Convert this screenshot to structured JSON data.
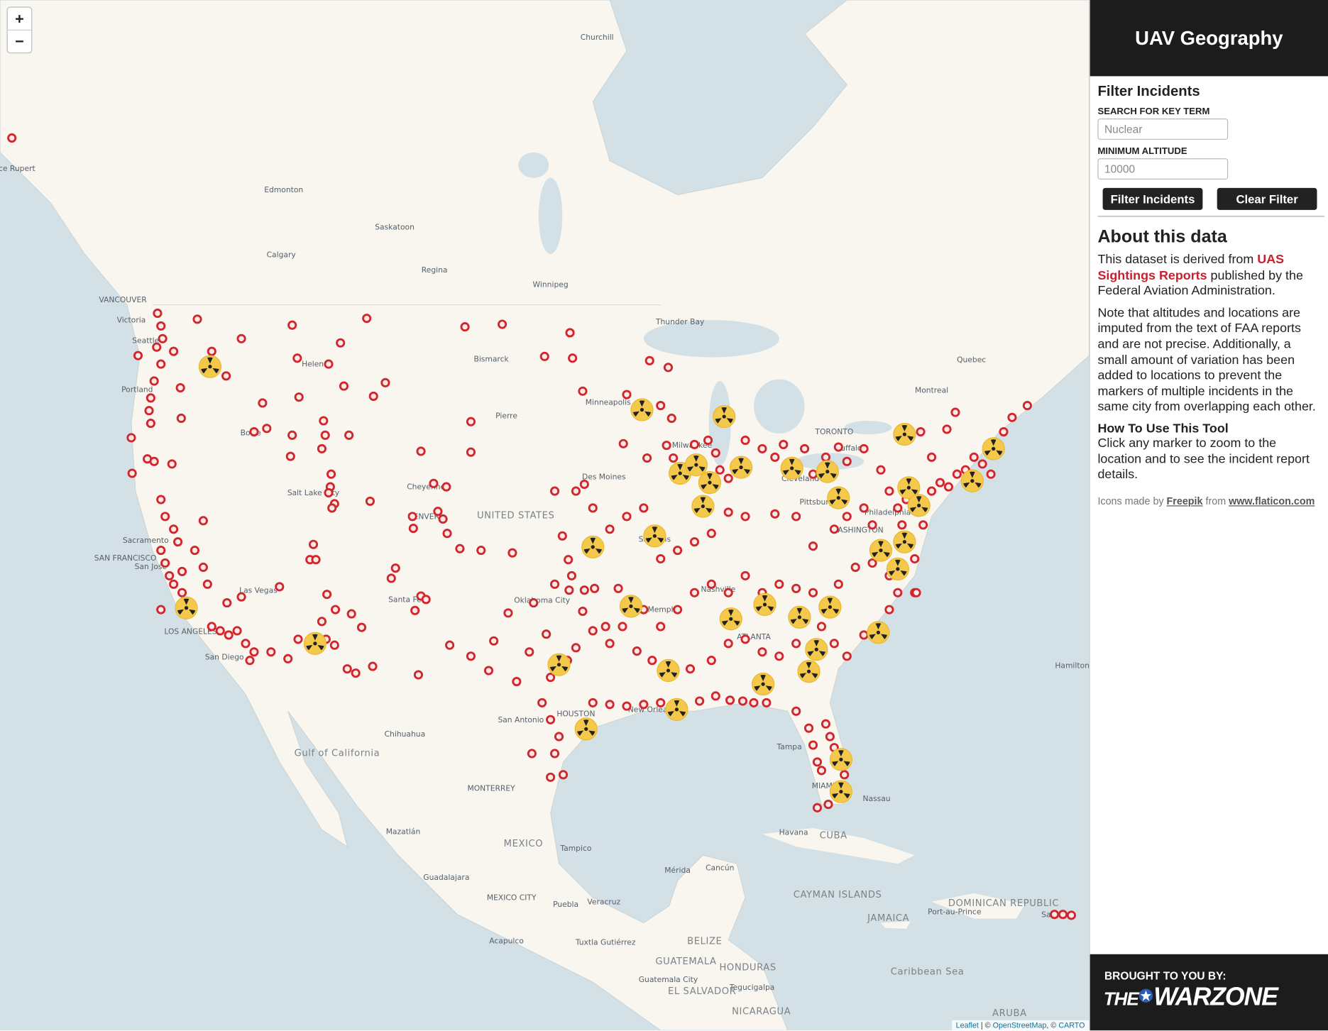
{
  "map": {
    "zoom_in": "+",
    "zoom_out": "−",
    "labels": [
      "Churchill",
      "ce Rupert",
      "Edmonton",
      "Saskatoon",
      "Calgary",
      "Regina",
      "Winnipeg",
      "VANCOUVER",
      "Victoria",
      "Seattle",
      "Portland",
      "Helena",
      "Bismarck",
      "Thunder Bay",
      "Quebec",
      "Montreal",
      "Pierre",
      "Minneapolis",
      "Boise",
      "TORONTO",
      "Buffalo",
      "Milwaukee",
      "Salt Lake City",
      "Cheyenne",
      "Des Moines",
      "Cleveland",
      "Pittsburgh",
      "DENVER",
      "UNITED STATES",
      "Philadelphia",
      "WASHINGTON",
      "St. Louis",
      "SAN FRANCISCO",
      "San Jose",
      "Sacramento",
      "Las Vegas",
      "Santa Fe",
      "Oklahoma City",
      "Nashville",
      "Memphis",
      "ATLANTA",
      "LOS ANGELES",
      "San Diego",
      "Hamilton",
      "San Antonio",
      "HOUSTON",
      "New Orleans",
      "Tampa",
      "MIAMI",
      "Nassau",
      "Chihuahua",
      "Gulf of California",
      "MONTERREY",
      "Mazatlán",
      "MEXICO",
      "Tampico",
      "Havana",
      "CUBA",
      "Mérida",
      "Cancún",
      "Guadalajara",
      "MEXICO CITY",
      "Puebla",
      "Veracruz",
      "CAYMAN ISLANDS",
      "JAMAICA",
      "DOMINICAN REPUBLIC",
      "Port-au-Prince",
      "San",
      "Acapulco",
      "Tuxtla Gutiérrez",
      "BELIZE",
      "GUATEMALA",
      "HONDURAS",
      "Guatemala City",
      "Tegucigalpa",
      "EL SALVADOR",
      "NICARAGUA",
      "ARUBA",
      "Caribbean Sea"
    ],
    "attribution": [
      "Leaflet",
      "| ©",
      "OpenStreetMap",
      ", ©",
      "CARTO"
    ]
  },
  "sidebar": {
    "title": "UAV Geography",
    "filter": {
      "heading": "Filter Incidents",
      "search_label": "SEARCH FOR KEY TERM",
      "search_value": "Nuclear",
      "altitude_label": "MINIMUM ALTITUDE",
      "altitude_value": "10000",
      "filter_button": "Filter Incidents",
      "clear_button": "Clear Filter"
    },
    "about": {
      "heading": "About this data",
      "p1": {
        "before": "This dataset is derived from",
        "link": "UAS Sightings Reports",
        "after": "published by the Federal Aviation Administration."
      },
      "p2": "Note that altitudes and locations are imputed from the text of FAA reports and are not precise. Additionally, a small amount of variation has been added to locations to prevent the markers of multiple incidents in the same city from overlapping each other.",
      "howto_heading": "How To Use This Tool",
      "howto": "Click any marker to zoom to the location and to see the incident report details.",
      "credits": [
        "Icons made by",
        "Freepik",
        "from",
        "www.flaticon.com"
      ]
    },
    "footer": {
      "label": "BROUGHT TO YOU BY:",
      "logo": [
        "THE",
        "WARZONE"
      ]
    }
  }
}
